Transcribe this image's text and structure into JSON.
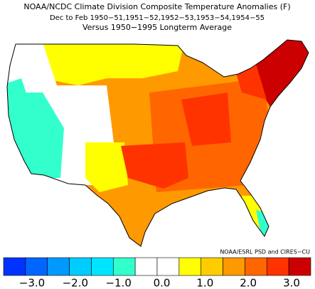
{
  "header": {
    "title": "NOAA/NCDC Climate Division Composite Temperature Anomalies (F)",
    "line2": "Dec to Feb  1950−51,1951−52,1952−53,1953−54,1954−55",
    "line3": "Versus 1950−1995 Longterm Average"
  },
  "credit": "NOAA/ESRL PSD and CIRES−CU",
  "legend": {
    "colors": [
      "#0033ff",
      "#0066ff",
      "#0099ff",
      "#00ccff",
      "#00e5ff",
      "#33ffcc",
      "#ffffff",
      "#ffffff",
      "#ffff00",
      "#ffcc00",
      "#ff9900",
      "#ff6600",
      "#ff3300",
      "#cc0000"
    ],
    "labels": [
      "−3.0",
      "−2.0",
      "−1.0",
      "0.0",
      "1.0",
      "2.0",
      "3.0"
    ]
  }
}
